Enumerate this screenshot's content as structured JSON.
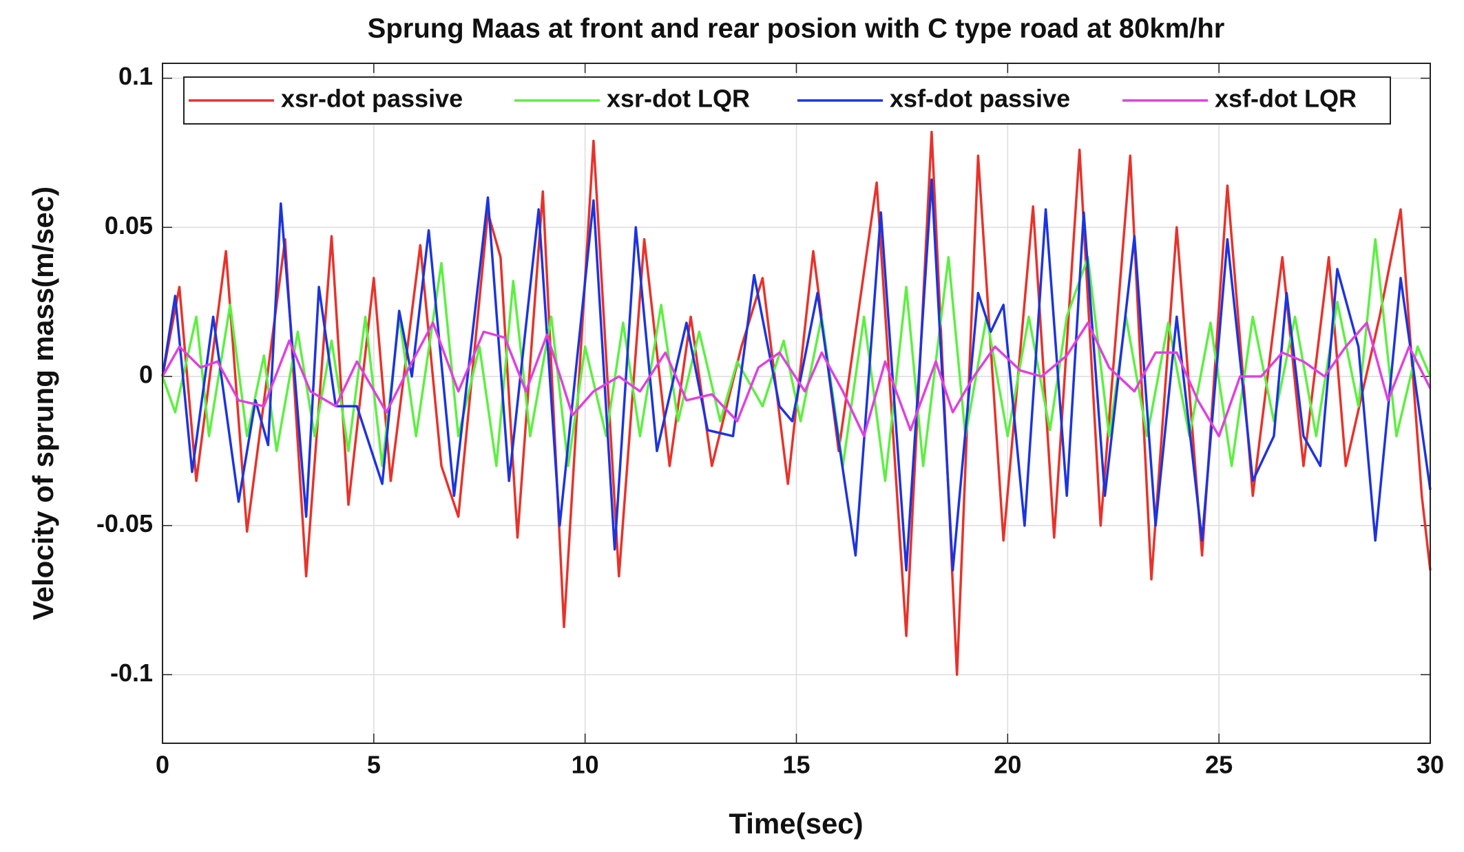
{
  "chart_data": {
    "type": "line",
    "title": "Sprung Maas at front and rear posion with C type road at 80km/hr",
    "x_label": "Time(sec)",
    "y_label": "Velocity of sprung mass(m/sec)",
    "xlim": [
      0,
      30
    ],
    "xticks": [
      0,
      5,
      10,
      15,
      20,
      25,
      30
    ],
    "ylim": [
      -0.123,
      0.105
    ],
    "yticks": [
      -0.1,
      -0.05,
      0,
      0.05,
      0.1
    ],
    "grid": true,
    "legend": "top",
    "series": [
      {
        "name": "xsr-dot passive",
        "color": "#e8322a",
        "x": [
          0,
          0.4,
          0.8,
          1.5,
          2.0,
          2.9,
          3.4,
          4.0,
          4.4,
          5.0,
          5.4,
          6.1,
          6.6,
          7.0,
          7.7,
          8.0,
          8.4,
          9.0,
          9.5,
          10.2,
          10.8,
          11.4,
          12.0,
          12.5,
          13.0,
          13.7,
          14.2,
          14.8,
          15.4,
          16.0,
          16.9,
          17.6,
          18.2,
          18.8,
          19.3,
          19.9,
          20.6,
          21.1,
          21.7,
          22.2,
          22.9,
          23.4,
          24.0,
          24.6,
          25.2,
          25.8,
          26.5,
          27.0,
          27.6,
          28.0,
          28.8,
          29.3,
          29.8,
          30
        ],
        "values": [
          0,
          0.03,
          -0.035,
          0.042,
          -0.052,
          0.046,
          -0.067,
          0.047,
          -0.043,
          0.033,
          -0.035,
          0.044,
          -0.03,
          -0.047,
          0.055,
          0.04,
          -0.054,
          0.062,
          -0.084,
          0.079,
          -0.067,
          0.046,
          -0.03,
          0.02,
          -0.03,
          0.01,
          0.033,
          -0.036,
          0.042,
          -0.025,
          0.065,
          -0.087,
          0.082,
          -0.1,
          0.074,
          -0.055,
          0.057,
          -0.054,
          0.076,
          -0.05,
          0.074,
          -0.068,
          0.05,
          -0.06,
          0.064,
          -0.04,
          0.04,
          -0.03,
          0.04,
          -0.03,
          0.02,
          0.056,
          -0.04,
          -0.065
        ]
      },
      {
        "name": "xsr-dot LQR",
        "color": "#5cf040",
        "x": [
          0,
          0.3,
          0.8,
          1.1,
          1.6,
          2.0,
          2.4,
          2.7,
          3.2,
          3.6,
          4.0,
          4.4,
          4.8,
          5.2,
          5.6,
          6.0,
          6.6,
          7.0,
          7.5,
          7.9,
          8.3,
          8.7,
          9.2,
          9.6,
          10.0,
          10.5,
          10.9,
          11.3,
          11.8,
          12.2,
          12.7,
          13.2,
          13.6,
          14.2,
          14.7,
          15.1,
          15.6,
          16.1,
          16.6,
          17.1,
          17.6,
          18.0,
          18.6,
          19.0,
          19.5,
          20.0,
          20.5,
          21.0,
          21.4,
          21.9,
          22.4,
          22.8,
          23.3,
          23.8,
          24.3,
          24.8,
          25.3,
          25.8,
          26.3,
          26.8,
          27.3,
          27.8,
          28.3,
          28.7,
          29.2,
          29.7,
          30
        ],
        "values": [
          0,
          -0.012,
          0.02,
          -0.02,
          0.024,
          -0.02,
          0.007,
          -0.025,
          0.015,
          -0.02,
          0.012,
          -0.025,
          0.02,
          -0.03,
          0.02,
          -0.02,
          0.038,
          -0.02,
          0.01,
          -0.03,
          0.032,
          -0.02,
          0.02,
          -0.03,
          0.01,
          -0.02,
          0.018,
          -0.02,
          0.024,
          -0.015,
          0.015,
          -0.015,
          0.005,
          -0.01,
          0.012,
          -0.015,
          0.02,
          -0.03,
          0.02,
          -0.035,
          0.03,
          -0.03,
          0.04,
          -0.02,
          0.02,
          -0.02,
          0.02,
          -0.018,
          0.02,
          0.04,
          -0.02,
          0.02,
          -0.02,
          0.018,
          -0.02,
          0.018,
          -0.03,
          0.02,
          -0.015,
          0.02,
          -0.02,
          0.025,
          -0.01,
          0.046,
          -0.02,
          0.01,
          0
        ]
      },
      {
        "name": "xsf-dot passive",
        "color": "#1c34e0",
        "x": [
          0,
          0.3,
          0.7,
          1.2,
          1.8,
          2.2,
          2.5,
          2.8,
          3.4,
          3.7,
          4.1,
          4.6,
          5.2,
          5.6,
          5.9,
          6.3,
          6.9,
          7.3,
          7.7,
          8.2,
          8.9,
          9.4,
          10.2,
          10.7,
          11.2,
          11.7,
          12.4,
          12.9,
          13.5,
          14.0,
          14.6,
          14.9,
          15.5,
          15.9,
          16.4,
          17.0,
          17.6,
          18.2,
          18.7,
          19.3,
          19.6,
          19.9,
          20.4,
          20.9,
          21.4,
          21.8,
          22.3,
          23.0,
          23.5,
          24.0,
          24.6,
          25.2,
          25.8,
          26.3,
          26.6,
          27.0,
          27.4,
          27.8,
          28.3,
          28.7,
          29.3,
          30
        ],
        "values": [
          0,
          0.027,
          -0.032,
          0.02,
          -0.042,
          -0.008,
          -0.023,
          0.058,
          -0.047,
          0.03,
          -0.01,
          -0.01,
          -0.036,
          0.022,
          0,
          0.049,
          -0.04,
          0.01,
          0.06,
          -0.035,
          0.056,
          -0.05,
          0.059,
          -0.058,
          0.05,
          -0.025,
          0.018,
          -0.018,
          -0.02,
          0.034,
          -0.01,
          -0.015,
          0.028,
          -0.012,
          -0.06,
          0.055,
          -0.065,
          0.066,
          -0.065,
          0.028,
          0.015,
          0.024,
          -0.05,
          0.056,
          -0.04,
          0.055,
          -0.04,
          0.047,
          -0.05,
          0.02,
          -0.055,
          0.046,
          -0.035,
          -0.02,
          0.028,
          -0.02,
          -0.03,
          0.036,
          0.01,
          -0.055,
          0.033,
          -0.038
        ]
      },
      {
        "name": "xsf-dot LQR",
        "color": "#e040e0",
        "x": [
          0,
          0.4,
          0.9,
          1.3,
          1.8,
          2.4,
          3.0,
          3.5,
          4.1,
          4.6,
          5.3,
          5.8,
          6.4,
          7.0,
          7.6,
          8.1,
          8.6,
          9.1,
          9.7,
          10.2,
          10.8,
          11.3,
          11.9,
          12.4,
          13.0,
          13.6,
          14.1,
          14.6,
          15.2,
          15.6,
          16.1,
          16.6,
          17.1,
          17.7,
          18.3,
          18.7,
          19.2,
          19.7,
          20.3,
          20.8,
          21.4,
          21.9,
          22.4,
          23.0,
          23.5,
          24.0,
          24.5,
          25.0,
          25.5,
          26.0,
          26.5,
          27.0,
          27.5,
          28.0,
          28.5,
          29.0,
          29.5,
          30
        ],
        "values": [
          0,
          0.01,
          0.003,
          0.005,
          -0.008,
          -0.01,
          0.012,
          -0.005,
          -0.01,
          0.005,
          -0.012,
          0.002,
          0.018,
          -0.005,
          0.015,
          0.013,
          -0.005,
          0.014,
          -0.013,
          -0.005,
          0,
          -0.005,
          0.008,
          -0.008,
          -0.006,
          -0.015,
          0.003,
          0.008,
          -0.005,
          0.008,
          -0.005,
          -0.02,
          0.005,
          -0.018,
          0.005,
          -0.012,
          0,
          0.01,
          0.002,
          0,
          0.007,
          0.018,
          0.003,
          -0.005,
          0.008,
          0.008,
          -0.008,
          -0.02,
          0,
          0,
          0.008,
          0.005,
          0,
          0.01,
          0.018,
          -0.008,
          0.01,
          -0.004
        ]
      }
    ]
  }
}
